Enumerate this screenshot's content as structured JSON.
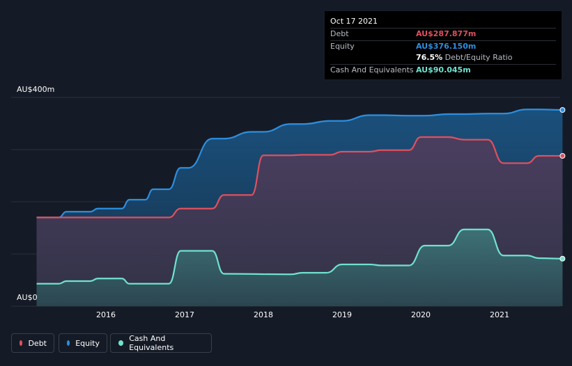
{
  "tooltip": {
    "date": "Oct 17 2021",
    "debt_label": "Debt",
    "debt_value": "AU$287.877m",
    "equity_label": "Equity",
    "equity_value": "AU$376.150m",
    "ratio_value": "76.5%",
    "ratio_label": "Debt/Equity Ratio",
    "cash_label": "Cash And Equivalents",
    "cash_value": "AU$90.045m"
  },
  "legend": {
    "debt": "Debt",
    "equity": "Equity",
    "cash": "Cash And Equivalents"
  },
  "colors": {
    "debt": "#e0505f",
    "equity": "#2d8fe0",
    "cash": "#6fe3cf",
    "background": "#151b26"
  },
  "chart_data": {
    "type": "area",
    "ylabel_top": "AU$400m",
    "ylabel_bottom": "AU$0",
    "ylim": [
      0,
      400
    ],
    "xlim": [
      2015.12,
      2021.8
    ],
    "xticks": [
      "2016",
      "2017",
      "2018",
      "2019",
      "2020",
      "2021"
    ],
    "grid": true,
    "legend_position": "bottom-left",
    "series": [
      {
        "name": "Equity",
        "x": [
          2015.12,
          2015.4,
          2015.5,
          2015.8,
          2015.9,
          2016.2,
          2016.3,
          2016.5,
          2016.6,
          2016.8,
          2016.95,
          2017.05,
          2017.35,
          2017.5,
          2017.85,
          2018.0,
          2018.35,
          2018.5,
          2018.85,
          2019.0,
          2019.35,
          2019.5,
          2019.85,
          2020.05,
          2020.35,
          2020.55,
          2020.85,
          2021.05,
          2021.35,
          2021.5,
          2021.8
        ],
        "values": [
          170,
          170,
          181,
          181,
          187,
          187,
          204,
          204,
          224,
          224,
          265,
          265,
          321,
          321,
          334,
          334,
          349,
          349,
          355,
          355,
          366,
          366,
          365,
          365,
          368,
          368,
          369,
          369,
          377,
          377,
          376
        ]
      },
      {
        "name": "Debt",
        "x": [
          2015.12,
          2016.8,
          2016.95,
          2017.35,
          2017.5,
          2017.85,
          2018.0,
          2018.35,
          2018.5,
          2018.85,
          2019.0,
          2019.35,
          2019.5,
          2019.85,
          2020.0,
          2020.35,
          2020.55,
          2020.85,
          2021.05,
          2021.35,
          2021.5,
          2021.8
        ],
        "values": [
          170,
          170,
          187,
          187,
          213,
          213,
          289,
          289,
          290,
          290,
          296,
          296,
          299,
          299,
          324,
          324,
          319,
          319,
          274,
          274,
          288,
          288
        ]
      },
      {
        "name": "Cash And Equivalents",
        "x": [
          2015.12,
          2015.4,
          2015.5,
          2015.8,
          2015.9,
          2016.2,
          2016.3,
          2016.55,
          2016.8,
          2016.95,
          2017.35,
          2017.5,
          2018.35,
          2018.5,
          2018.8,
          2019.0,
          2019.35,
          2019.5,
          2019.85,
          2020.05,
          2020.35,
          2020.55,
          2020.85,
          2021.05,
          2021.35,
          2021.5,
          2021.8
        ],
        "values": [
          43,
          43,
          48,
          48,
          53,
          53,
          43,
          43,
          43,
          106,
          106,
          62,
          61,
          64,
          64,
          80,
          80,
          78,
          78,
          116,
          116,
          147,
          147,
          97,
          97,
          92,
          91
        ]
      }
    ]
  }
}
